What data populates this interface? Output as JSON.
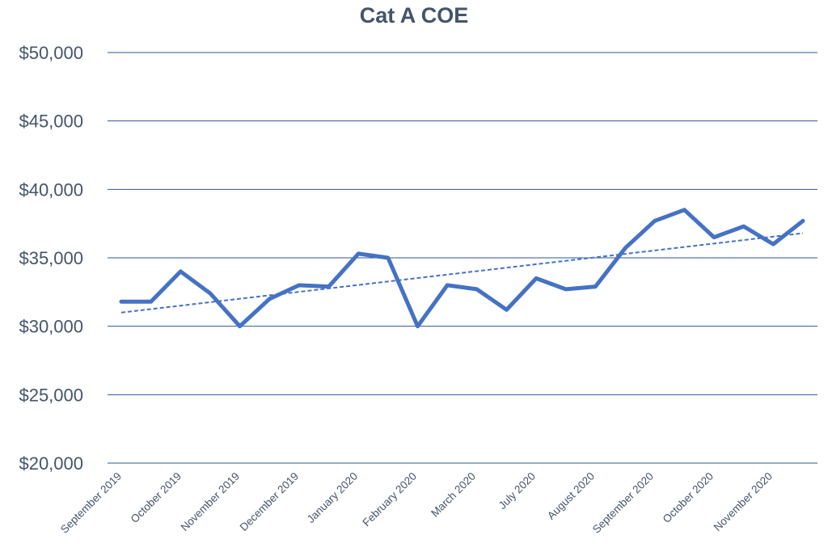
{
  "chart_data": {
    "type": "line",
    "title": "Cat A COE",
    "xlabel": "",
    "ylabel": "",
    "ylim": [
      20000,
      50000
    ],
    "y_ticks": [
      20000,
      25000,
      30000,
      35000,
      40000,
      45000,
      50000
    ],
    "y_tick_labels": [
      "$20,000",
      "$25,000",
      "$30,000",
      "$35,000",
      "$40,000",
      "$45,000",
      "$50,000"
    ],
    "x_tick_labels": [
      "September 2019",
      "October 2019",
      "November 2019",
      "December 2019",
      "January 2020",
      "February 2020",
      "March 2020",
      "July 2020",
      "August 2020",
      "September 2020",
      "October 2020",
      "November 2020"
    ],
    "grid": true,
    "legend": "none",
    "series": [
      {
        "values": [
          31800,
          31800,
          34000,
          32400,
          30000,
          32000,
          33000,
          32900,
          35300,
          35000,
          30000,
          33000,
          32700,
          31200,
          33500,
          32700,
          32900,
          35700,
          37700,
          38500,
          36500,
          37300,
          36000,
          37700
        ],
        "color": "#4472C4"
      }
    ],
    "trendline": {
      "type": "linear",
      "start": 31000,
      "end": 36800,
      "color": "#4472C4",
      "style": "dashed"
    },
    "colors": {
      "gridline": "#2F5597",
      "text": "#44546A"
    }
  }
}
